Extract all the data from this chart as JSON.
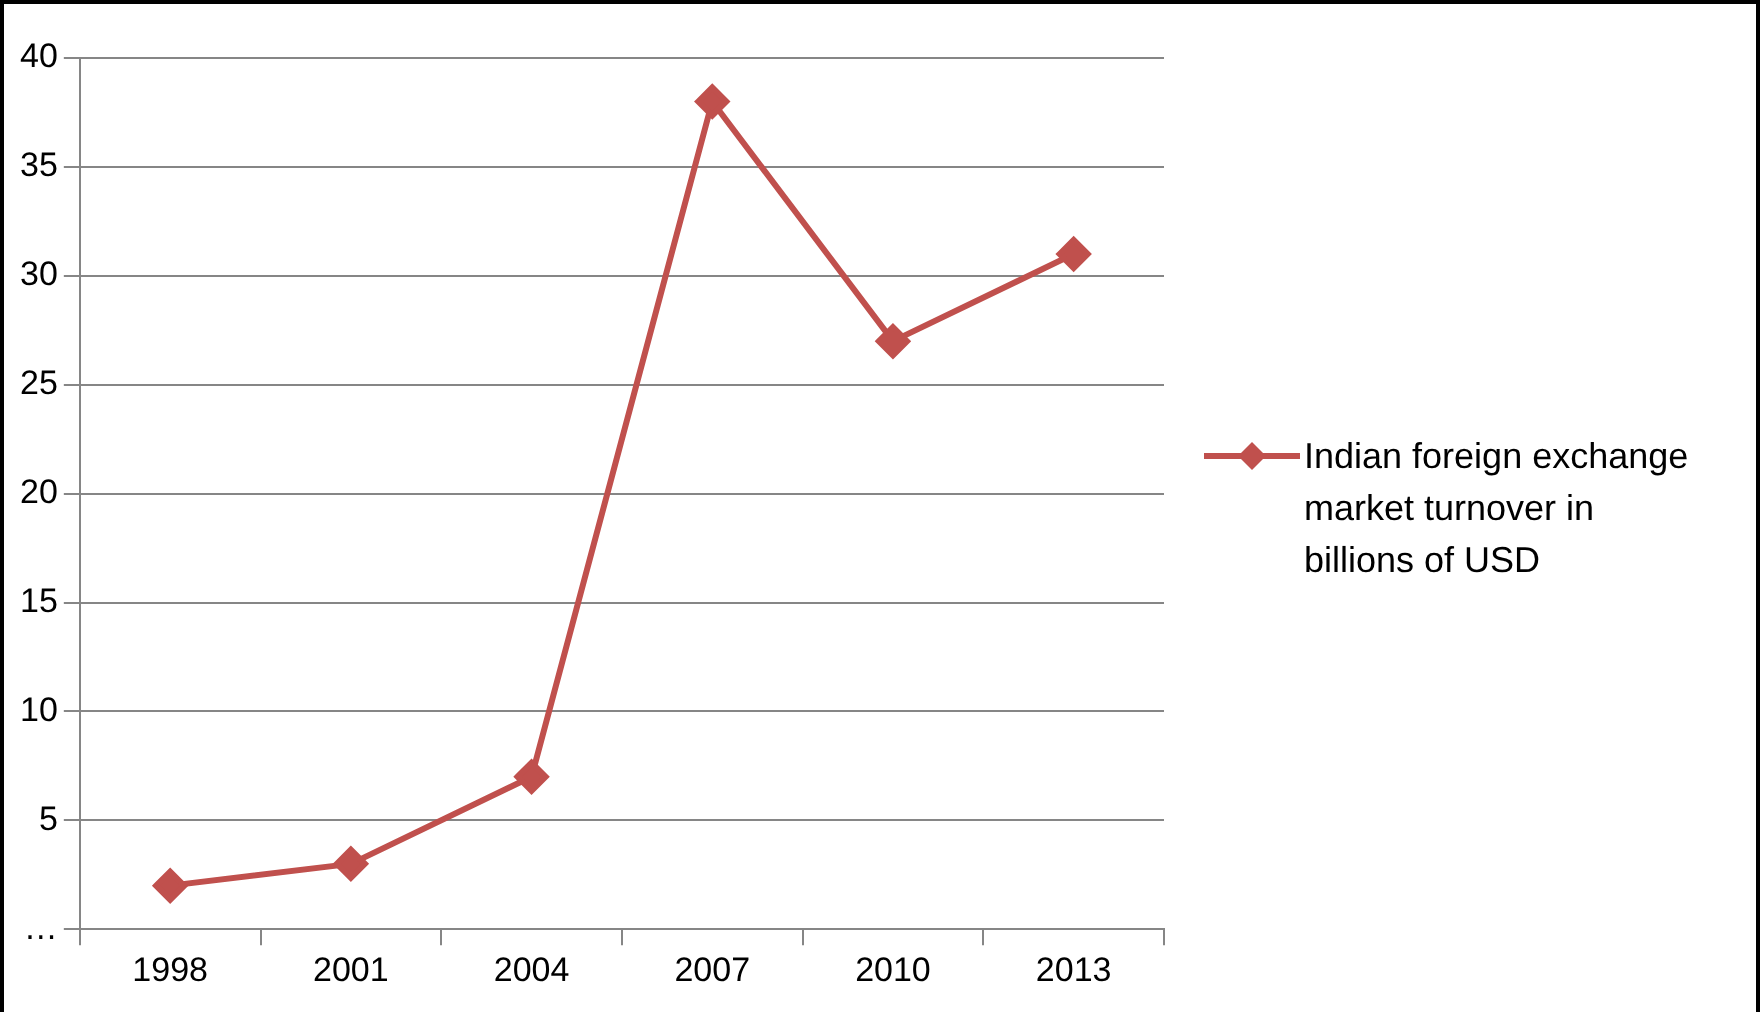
{
  "chart_data": {
    "type": "line",
    "categories": [
      "1998",
      "2001",
      "2004",
      "2007",
      "2010",
      "2013"
    ],
    "series": [
      {
        "name": "Indian foreign exchange market turnover in billions of USD",
        "color": "#c0504d",
        "values": [
          2,
          3,
          7,
          38,
          27,
          31
        ]
      }
    ],
    "ylim": [
      0,
      40
    ],
    "yticks": [
      {
        "value": 0,
        "label": "…"
      },
      5,
      10,
      15,
      20,
      25,
      30,
      35,
      40
    ],
    "grid": "y",
    "legend": "right",
    "marker": "diamond",
    "line_style": "solid"
  }
}
